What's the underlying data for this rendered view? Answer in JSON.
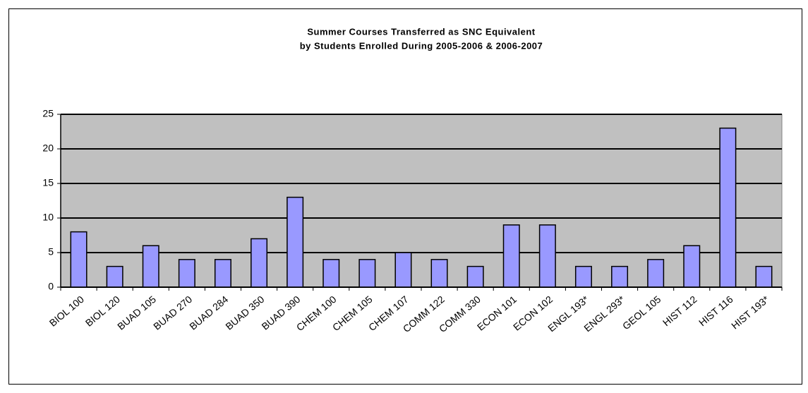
{
  "chart_data": {
    "type": "bar",
    "title": "Summer Courses Transferred as SNC Equivalent",
    "subtitle": "by Students Enrolled During 2005-2006 & 2006-2007",
    "categories": [
      "BIOL 100",
      "BIOL 120",
      "BUAD 105",
      "BUAD 270",
      "BUAD 284",
      "BUAD 350",
      "BUAD 390",
      "CHEM 100",
      "CHEM 105",
      "CHEM 107",
      "COMM 122",
      "COMM 330",
      "ECON 101",
      "ECON 102",
      "ENGL 193*",
      "ENGL 293*",
      "GEOL 105",
      "HIST 112",
      "HIST 116",
      "HIST 193*"
    ],
    "values": [
      8,
      3,
      6,
      4,
      4,
      7,
      13,
      4,
      4,
      5,
      4,
      3,
      9,
      9,
      3,
      3,
      4,
      6,
      23,
      3
    ],
    "color": "#9999ff",
    "ylim": [
      0,
      25
    ],
    "yticks": [
      0,
      5,
      10,
      15,
      20,
      25
    ],
    "grid": true
  }
}
